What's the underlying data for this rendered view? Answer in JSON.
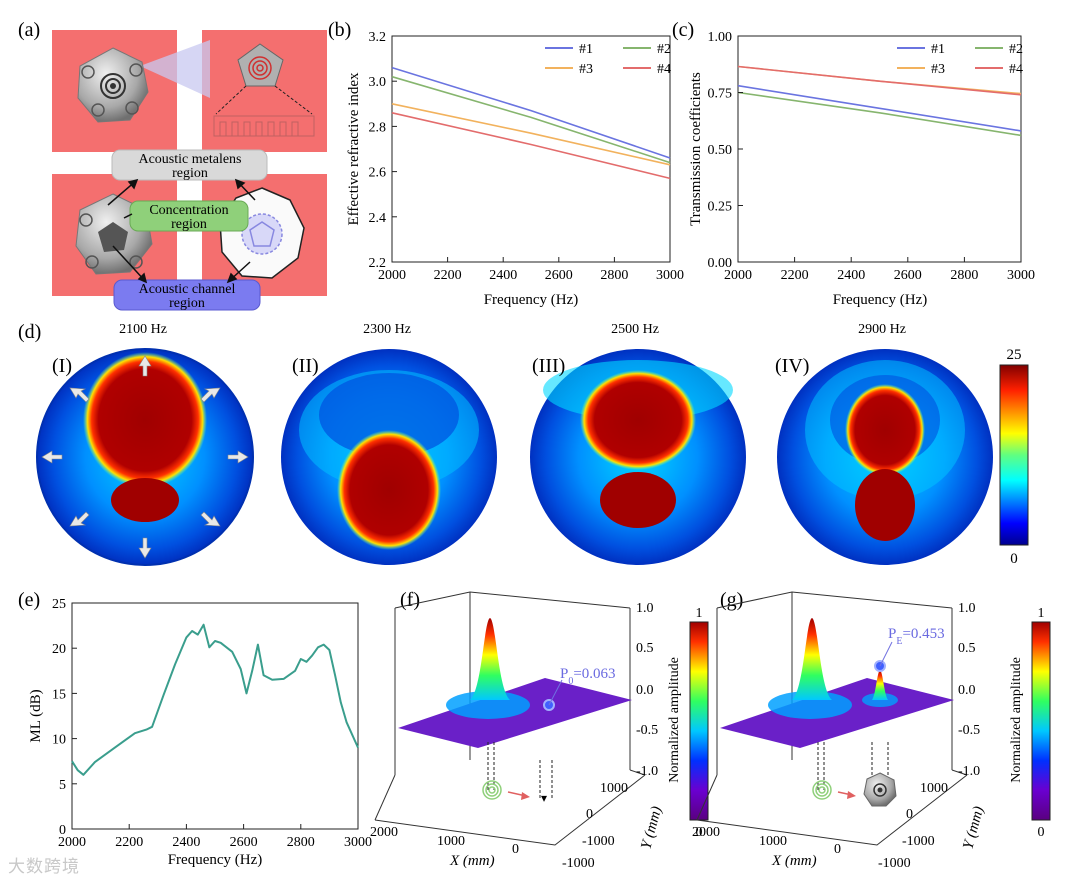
{
  "panel_letters": {
    "a": "(a)",
    "b": "(b)",
    "c": "(c)",
    "d": "(d)",
    "e": "(e)",
    "f": "(f)",
    "g": "(g)"
  },
  "panel_a": {
    "labels": {
      "metalens": [
        "Acoustic metalens",
        "region"
      ],
      "concentration": [
        "Concentration",
        "region"
      ],
      "channel": [
        "Acoustic channel",
        "region"
      ]
    },
    "colors": {
      "bg": "#f46f6f",
      "metalens_box": "#d9d9d9",
      "concentration_box": "#8fd07a",
      "channel_box": "#7b7bf0"
    }
  },
  "panel_d": {
    "frequencies": [
      "2100 Hz",
      "2300 Hz",
      "2500 Hz",
      "2900 Hz"
    ],
    "romans": [
      "(I)",
      "(II)",
      "(III)",
      "(IV)"
    ],
    "colorbar": {
      "max": "25",
      "min": "0"
    }
  },
  "panel_f": {
    "annotation": "P",
    "sub": "0",
    "value": "=0.063",
    "colorbar_title": "Normalized amplitude",
    "colorbar_max": "1",
    "colorbar_min": "0"
  },
  "panel_g": {
    "annotation": "P",
    "sub": "E",
    "value": "=0.453",
    "colorbar_title": "Normalized amplitude",
    "colorbar_max": "1",
    "colorbar_min": "0"
  },
  "panel_3d_axes": {
    "z_ticks": [
      "1.0",
      "0.5",
      "0.0",
      "-0.5",
      "-1.0"
    ],
    "x_ticks": [
      "2000",
      "1000",
      "0",
      "-1000"
    ],
    "y_ticks": [
      "1000",
      "0",
      "-1000"
    ],
    "x_label": "X (mm)",
    "y_label": "Y (mm)"
  },
  "watermark": "大数跨境",
  "chart_data": [
    {
      "id": "b",
      "type": "line",
      "xlabel": "Frequency (Hz)",
      "ylabel": "Effective refractive index",
      "xlim": [
        2000,
        3000
      ],
      "ylim": [
        2.2,
        3.2
      ],
      "xticks": [
        2000,
        2200,
        2400,
        2600,
        2800,
        3000
      ],
      "yticks": [
        2.2,
        2.4,
        2.6,
        2.8,
        3.0,
        3.2
      ],
      "ytick_labels": [
        "2.2",
        "2.4",
        "2.6",
        "2.8",
        "3.0",
        "3.2"
      ],
      "legend_position": "top-right",
      "x": [
        2000,
        2500,
        3000
      ],
      "series": [
        {
          "name": "#1",
          "color": "#6a74e0",
          "values": [
            3.06,
            2.87,
            2.66
          ]
        },
        {
          "name": "#2",
          "color": "#86b56e",
          "values": [
            3.02,
            2.84,
            2.64
          ]
        },
        {
          "name": "#3",
          "color": "#f2b25d",
          "values": [
            2.9,
            2.77,
            2.63
          ]
        },
        {
          "name": "#4",
          "color": "#e36c6c",
          "values": [
            2.86,
            2.72,
            2.57
          ]
        }
      ]
    },
    {
      "id": "c",
      "type": "line",
      "xlabel": "Frequency (Hz)",
      "ylabel": "Transmission coefficients",
      "xlim": [
        2000,
        3000
      ],
      "ylim": [
        0.0,
        1.0
      ],
      "xticks": [
        2000,
        2200,
        2400,
        2600,
        2800,
        3000
      ],
      "yticks": [
        0.0,
        0.25,
        0.5,
        0.75,
        1.0
      ],
      "ytick_labels": [
        "0.00",
        "0.25",
        "0.50",
        "0.75",
        "1.00"
      ],
      "legend_position": "top-right",
      "x": [
        2000,
        2500,
        3000
      ],
      "series": [
        {
          "name": "#1",
          "color": "#6a74e0",
          "values": [
            0.78,
            0.68,
            0.58
          ]
        },
        {
          "name": "#2",
          "color": "#86b56e",
          "values": [
            0.75,
            0.66,
            0.56
          ]
        },
        {
          "name": "#3",
          "color": "#f2b25d",
          "values": [
            0.865,
            0.8,
            0.745
          ]
        },
        {
          "name": "#4",
          "color": "#e36c6c",
          "values": [
            0.865,
            0.8,
            0.74
          ]
        }
      ]
    },
    {
      "id": "e",
      "type": "line",
      "xlabel": "Frequency (Hz)",
      "ylabel": "ML (dB)",
      "xlim": [
        2000,
        3000
      ],
      "ylim": [
        0,
        25
      ],
      "xticks": [
        2000,
        2200,
        2400,
        2600,
        2800,
        3000
      ],
      "yticks": [
        0,
        5,
        10,
        15,
        20,
        25
      ],
      "ytick_labels": [
        "0",
        "5",
        "10",
        "15",
        "20",
        "25"
      ],
      "x": [
        2000,
        2020,
        2040,
        2080,
        2150,
        2220,
        2260,
        2280,
        2320,
        2360,
        2400,
        2420,
        2440,
        2460,
        2480,
        2500,
        2520,
        2560,
        2590,
        2610,
        2630,
        2650,
        2670,
        2700,
        2740,
        2780,
        2800,
        2820,
        2840,
        2860,
        2880,
        2900,
        2920,
        2940,
        2960,
        3000
      ],
      "series": [
        {
          "name": "ML",
          "color": "#3a9e8d",
          "values": [
            7.5,
            6.5,
            6.0,
            7.4,
            9.0,
            10.6,
            11.0,
            11.3,
            14.8,
            18.2,
            21.2,
            21.9,
            21.5,
            22.6,
            20.1,
            20.8,
            20.6,
            19.6,
            17.7,
            15.0,
            17.5,
            20.4,
            17.0,
            16.5,
            16.6,
            17.5,
            18.8,
            18.5,
            19.2,
            20.1,
            20.4,
            19.8,
            17.0,
            14.0,
            11.8,
            9.0
          ]
        }
      ]
    }
  ]
}
